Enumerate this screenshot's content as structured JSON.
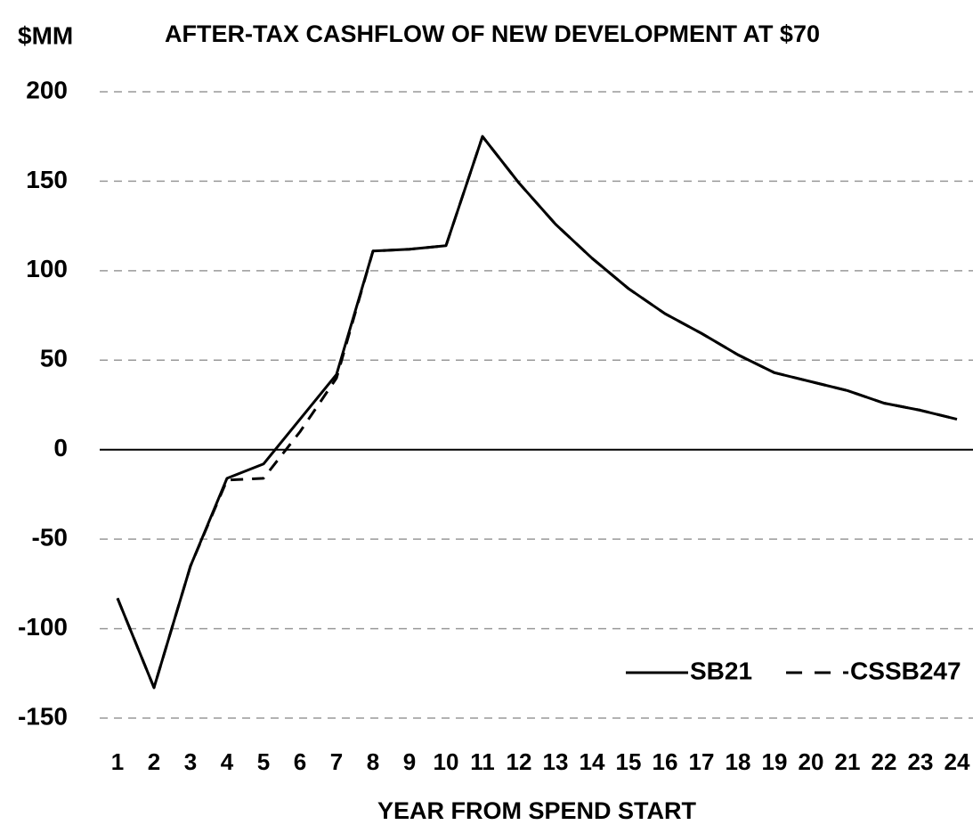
{
  "chart_data": {
    "type": "line",
    "title": "AFTER-TAX CASHFLOW OF NEW DEVELOPMENT AT $70",
    "ylabel": "$MM",
    "xlabel": "YEAR FROM SPEND START",
    "categories": [
      "1",
      "2",
      "3",
      "4",
      "5",
      "6",
      "7",
      "8",
      "9",
      "10",
      "11",
      "12",
      "13",
      "14",
      "15",
      "16",
      "17",
      "18",
      "19",
      "20",
      "21",
      "22",
      "23",
      "24"
    ],
    "series": [
      {
        "name": "SB21",
        "color": "#000000",
        "dash": "solid",
        "values": [
          -83,
          -133,
          -65,
          -16,
          -8,
          17,
          42,
          111,
          112,
          114,
          175,
          149,
          126,
          107,
          90,
          76,
          65,
          53,
          43,
          38,
          33,
          26,
          22,
          17
        ]
      },
      {
        "name": "CSSB247",
        "color": "#000000",
        "dash": "dashed",
        "values": [
          -83,
          -133,
          -65,
          -17,
          -16,
          10,
          40,
          111,
          112,
          114,
          175,
          149,
          126,
          107,
          90,
          76,
          65,
          53,
          43,
          38,
          33,
          26,
          22,
          17
        ]
      }
    ],
    "ylim": [
      -150,
      200
    ],
    "yticks": [
      -150,
      -100,
      -50,
      0,
      50,
      100,
      150,
      200
    ],
    "grid": true,
    "legend": "lower right"
  }
}
